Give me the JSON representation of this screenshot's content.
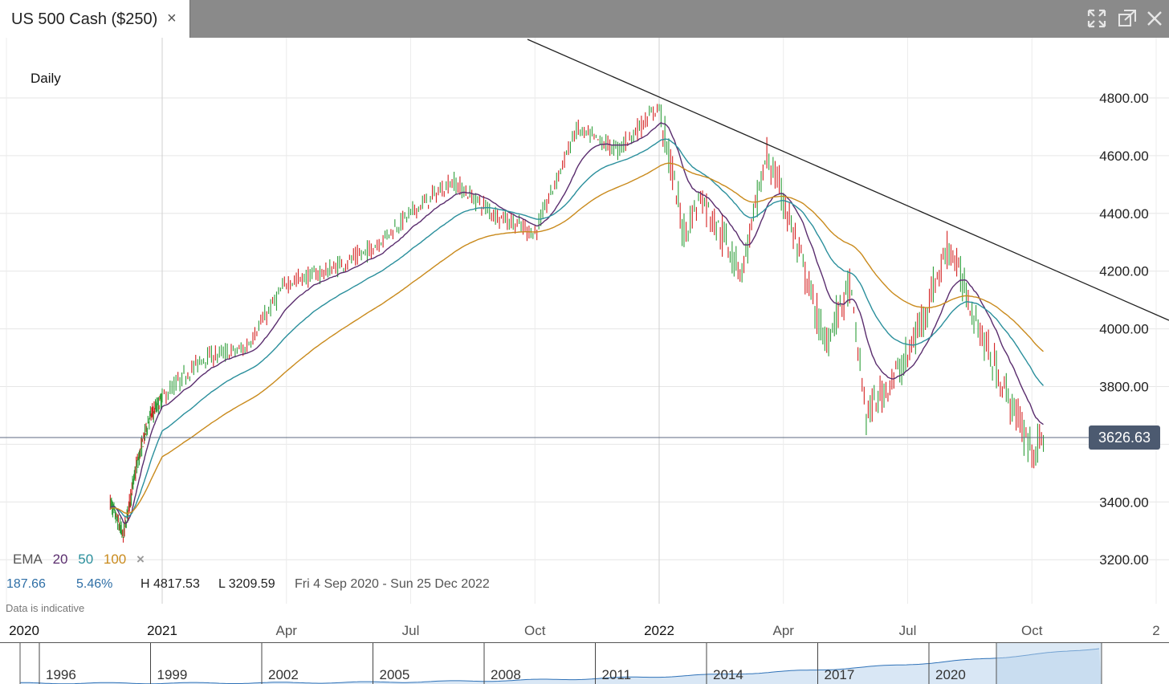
{
  "window": {
    "tab_title": "US 500 Cash ($250)",
    "tab_close": "×",
    "buttons": [
      "expand-icon",
      "popout-icon",
      "close-icon"
    ]
  },
  "chart": {
    "timeframe": "Daily",
    "current_price": "3626.63",
    "y_ticks": [
      "4800.00",
      "4600.00",
      "4400.00",
      "4200.00",
      "4000.00",
      "3800.00",
      "3600.00",
      "3400.00",
      "3200.00"
    ],
    "x_ticks": [
      "2020",
      "2021",
      "Apr",
      "Jul",
      "Oct",
      "2022",
      "Apr",
      "Jul",
      "Oct",
      "2"
    ],
    "ema": {
      "label": "EMA",
      "p20": "20",
      "p50": "50",
      "p100": "100",
      "close": "×"
    },
    "stats": {
      "change": "187.66",
      "change_pct": "5.46%",
      "high": "H 4817.53",
      "low": "L 3209.59",
      "range": "Fri 4 Sep 2020 - Sun 25 Dec 2022"
    },
    "indicative": "Data is indicative",
    "colors": {
      "up": "#2e9e3a",
      "down": "#d42020",
      "ema20": "#5a2d6e",
      "ema50": "#2a8f9c",
      "ema100": "#c98a1c",
      "trendline": "#222222",
      "badge": "#4c5a70",
      "nav_fill": "#b9d3ec",
      "nav_line": "#2f72b8"
    }
  },
  "navigator": {
    "years": [
      "1996",
      "1999",
      "2002",
      "2005",
      "2008",
      "2011",
      "2014",
      "2017",
      "2020"
    ]
  },
  "chart_data": {
    "type": "candlestick",
    "title": "US 500 Cash ($250)",
    "interval": "Daily",
    "ylim": [
      3100,
      4950
    ],
    "x_range": [
      "2020",
      "2022-12"
    ],
    "grid": true,
    "anchors": [
      {
        "date": "2020-09",
        "price": 3400
      },
      {
        "date": "2020-10",
        "price": 3280
      },
      {
        "date": "2020-11",
        "price": 3520
      },
      {
        "date": "2020-12",
        "price": 3690
      },
      {
        "date": "2021-01",
        "price": 3760
      },
      {
        "date": "2021-02",
        "price": 3900
      },
      {
        "date": "2021-03",
        "price": 3930
      },
      {
        "date": "2021-04",
        "price": 4160
      },
      {
        "date": "2021-05",
        "price": 4200
      },
      {
        "date": "2021-06",
        "price": 4270
      },
      {
        "date": "2021-07",
        "price": 4400
      },
      {
        "date": "2021-08",
        "price": 4510
      },
      {
        "date": "2021-09",
        "price": 4400
      },
      {
        "date": "2021-10",
        "price": 4330
      },
      {
        "date": "2021-11",
        "price": 4690
      },
      {
        "date": "2021-12",
        "price": 4620
      },
      {
        "date": "2022-01",
        "price": 4770
      },
      {
        "date": "2022-01-late",
        "price": 4330
      },
      {
        "date": "2022-02",
        "price": 4460
      },
      {
        "date": "2022-03",
        "price": 4200
      },
      {
        "date": "2022-03-late",
        "price": 4600
      },
      {
        "date": "2022-04",
        "price": 4450
      },
      {
        "date": "2022-05",
        "price": 3950
      },
      {
        "date": "2022-05-late",
        "price": 4150
      },
      {
        "date": "2022-06",
        "price": 3700
      },
      {
        "date": "2022-07",
        "price": 3900
      },
      {
        "date": "2022-08",
        "price": 4290
      },
      {
        "date": "2022-08-late",
        "price": 4050
      },
      {
        "date": "2022-09",
        "price": 3900
      },
      {
        "date": "2022-10",
        "price": 3580
      },
      {
        "date": "2022-10-late",
        "price": 3626.63
      }
    ],
    "ema_periods": [
      20,
      50,
      100
    ],
    "trendline": [
      {
        "date": "2021-07",
        "price": 4990
      },
      {
        "date": "2022-12",
        "price": 4030
      }
    ],
    "current_price": 3626.63,
    "high": 4817.53,
    "low": 3209.59,
    "change": 187.66,
    "change_pct": 5.46
  }
}
